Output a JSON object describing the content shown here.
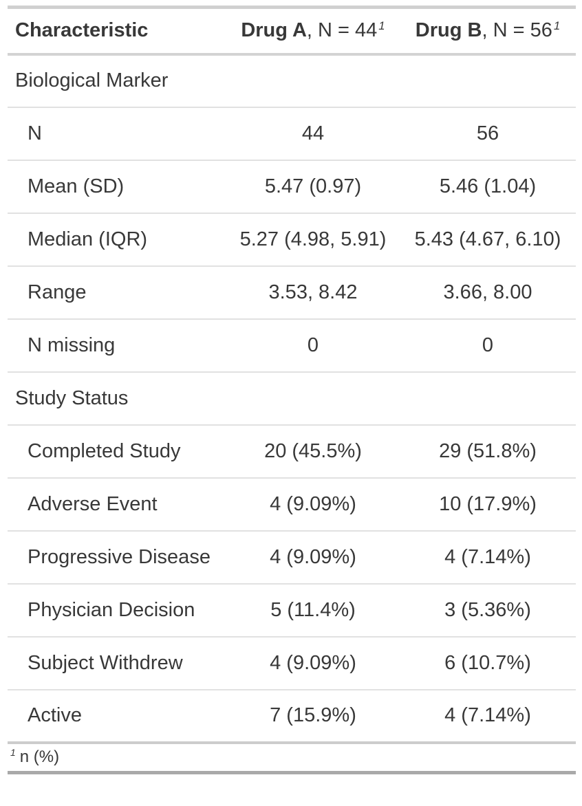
{
  "colors": {
    "background": "#ffffff",
    "text": "#383838",
    "border_top": "#d0d0d0",
    "header_border": "#d3d3d3",
    "row_separator": "#e1e1e1",
    "body_bottom_border": "#cccccc",
    "table_bottom_border": "#a9a9a9"
  },
  "table": {
    "header": {
      "characteristic": "Characteristic",
      "drug_a": {
        "name": "Drug A",
        "rest": ", N = 44",
        "footnote_mark": "1"
      },
      "drug_b": {
        "name": "Drug B",
        "rest": ", N = 56",
        "footnote_mark": "1"
      }
    },
    "rows": [
      {
        "label": "Biological Marker",
        "group": true,
        "indent": false,
        "drug_a": "",
        "drug_b": ""
      },
      {
        "label": "N",
        "group": false,
        "indent": true,
        "drug_a": "44",
        "drug_b": "56"
      },
      {
        "label": "Mean (SD)",
        "group": false,
        "indent": true,
        "drug_a": "5.47 (0.97)",
        "drug_b": "5.46 (1.04)"
      },
      {
        "label": "Median (IQR)",
        "group": false,
        "indent": true,
        "drug_a": "5.27 (4.98, 5.91)",
        "drug_b": "5.43 (4.67, 6.10)"
      },
      {
        "label": "Range",
        "group": false,
        "indent": true,
        "drug_a": "3.53, 8.42",
        "drug_b": "3.66, 8.00"
      },
      {
        "label": "N missing",
        "group": false,
        "indent": true,
        "drug_a": "0",
        "drug_b": "0"
      },
      {
        "label": "Study Status",
        "group": true,
        "indent": false,
        "drug_a": "",
        "drug_b": ""
      },
      {
        "label": "Completed Study",
        "group": false,
        "indent": true,
        "drug_a": "20 (45.5%)",
        "drug_b": "29 (51.8%)"
      },
      {
        "label": "Adverse Event",
        "group": false,
        "indent": true,
        "drug_a": "4 (9.09%)",
        "drug_b": "10 (17.9%)"
      },
      {
        "label": "Progressive Disease",
        "group": false,
        "indent": true,
        "drug_a": "4 (9.09%)",
        "drug_b": "4 (7.14%)"
      },
      {
        "label": "Physician Decision",
        "group": false,
        "indent": true,
        "drug_a": "5 (11.4%)",
        "drug_b": "3 (5.36%)"
      },
      {
        "label": "Subject Withdrew",
        "group": false,
        "indent": true,
        "drug_a": "4 (9.09%)",
        "drug_b": "6 (10.7%)"
      },
      {
        "label": "Active",
        "group": false,
        "indent": true,
        "drug_a": "7 (15.9%)",
        "drug_b": "4 (7.14%)"
      }
    ],
    "footnote": {
      "mark": "1",
      "text": "n (%)"
    }
  },
  "chart_data": {
    "type": "table",
    "title": "",
    "columns": [
      "Characteristic",
      "Drug A, N = 44 (1)",
      "Drug B, N = 56 (1)"
    ],
    "rows": [
      [
        "Biological Marker",
        "",
        ""
      ],
      [
        "N",
        "44",
        "56"
      ],
      [
        "Mean (SD)",
        "5.47 (0.97)",
        "5.46 (1.04)"
      ],
      [
        "Median (IQR)",
        "5.27 (4.98, 5.91)",
        "5.43 (4.67, 6.10)"
      ],
      [
        "Range",
        "3.53, 8.42",
        "3.66, 8.00"
      ],
      [
        "N missing",
        "0",
        "0"
      ],
      [
        "Study Status",
        "",
        ""
      ],
      [
        "Completed Study",
        "20 (45.5%)",
        "29 (51.8%)"
      ],
      [
        "Adverse Event",
        "4 (9.09%)",
        "10 (17.9%)"
      ],
      [
        "Progressive Disease",
        "4 (9.09%)",
        "4 (7.14%)"
      ],
      [
        "Physician Decision",
        "5 (11.4%)",
        "3 (5.36%)"
      ],
      [
        "Subject Withdrew",
        "4 (9.09%)",
        "6 (10.7%)"
      ],
      [
        "Active",
        "7 (15.9%)",
        "4 (7.14%)"
      ]
    ],
    "footnote": "1 n (%)"
  }
}
